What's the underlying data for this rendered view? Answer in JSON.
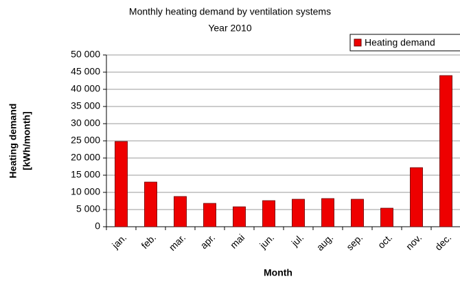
{
  "chart_data": {
    "type": "bar",
    "title": "Monthly heating demand by ventilation systems",
    "subtitle": "Year 2010",
    "xlabel": "Month",
    "ylabel": [
      "Heating demand",
      "[kWh/month]"
    ],
    "categories": [
      "jan.",
      "feb.",
      "mar.",
      "apr.",
      "mai",
      "jun.",
      "jul.",
      "aug.",
      "sep.",
      "oct.",
      "nov.",
      "dec."
    ],
    "series": [
      {
        "name": "Heating demand",
        "color": "#ee0000",
        "values": [
          24800,
          13000,
          8800,
          6800,
          5800,
          7600,
          8000,
          8200,
          8000,
          5400,
          17200,
          44000
        ]
      }
    ],
    "ylim": [
      0,
      50000
    ],
    "yticks": [
      0,
      {
        "value": 5000,
        "label": "5 000"
      },
      {
        "value": 10000,
        "label": "10 000"
      },
      {
        "value": 15000,
        "label": "15 000"
      },
      {
        "value": 20000,
        "label": "20 000"
      },
      {
        "value": 25000,
        "label": "25 000"
      },
      {
        "value": 30000,
        "label": "30 000"
      },
      {
        "value": 35000,
        "label": "35 000"
      },
      {
        "value": 40000,
        "label": "40 000"
      },
      {
        "value": 45000,
        "label": "45 000"
      },
      {
        "value": 50000,
        "label": "50 000"
      }
    ],
    "grid": true,
    "legend": "top-right"
  }
}
